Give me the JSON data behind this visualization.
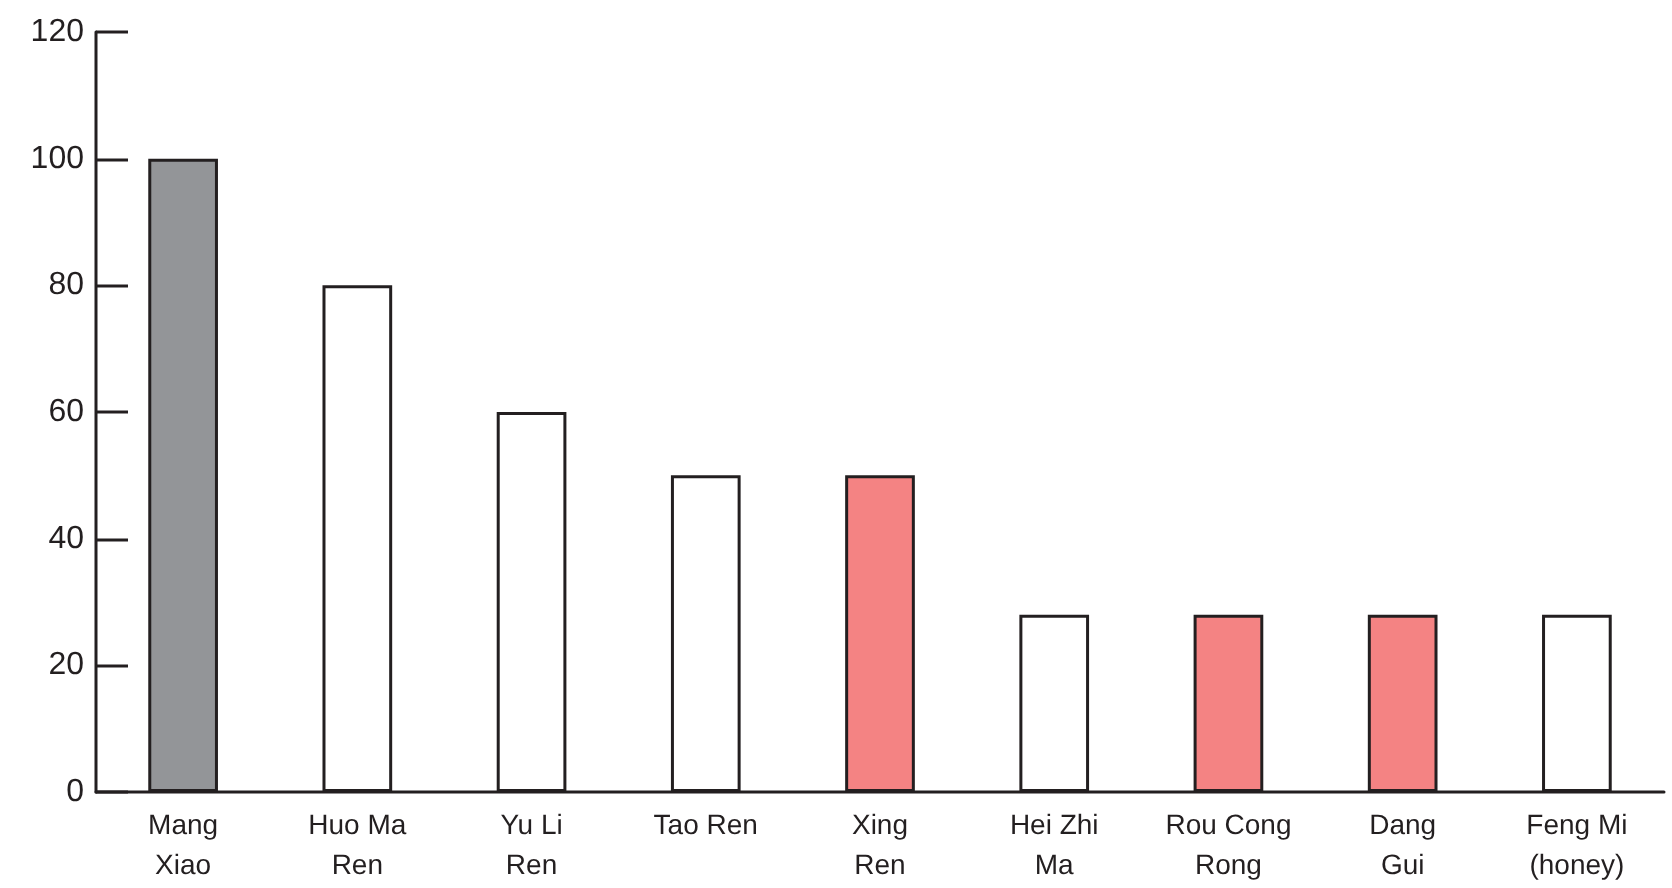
{
  "chart_data": {
    "type": "bar",
    "categories": [
      "Mang\nXiao",
      "Huo Ma\nRen",
      "Yu Li\nRen",
      "Tao Ren",
      "Xing\nRen",
      "Hei Zhi\nMa",
      "Rou Cong\nRong",
      "Dang\nGui",
      "Feng Mi\n(honey)"
    ],
    "values": [
      100,
      80,
      60,
      50,
      50,
      28,
      28,
      28,
      28
    ],
    "colors": [
      "#939598",
      "#ffffff",
      "#ffffff",
      "#ffffff",
      "#f48383",
      "#ffffff",
      "#f48383",
      "#f48383",
      "#ffffff"
    ],
    "ylim": [
      0,
      120
    ],
    "yticks": [
      0,
      20,
      40,
      60,
      80,
      100,
      120
    ],
    "grid": false
  }
}
